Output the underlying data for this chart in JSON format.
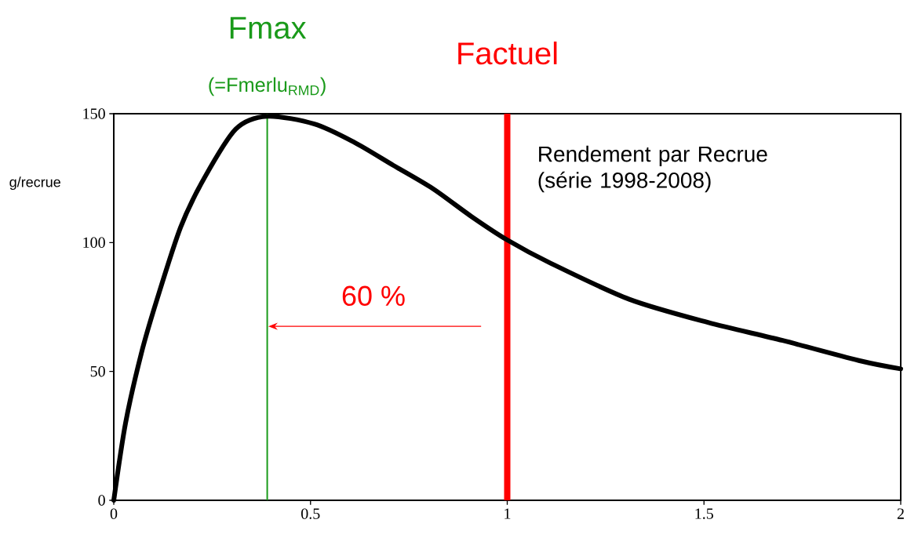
{
  "chart_data": {
    "type": "line",
    "ylabel": "g/recrue",
    "x": [
      0,
      0.03,
      0.07,
      0.11,
      0.17,
      0.23,
      0.31,
      0.39,
      0.51,
      0.61,
      0.71,
      0.81,
      0.91,
      1.0,
      1.11,
      1.31,
      1.51,
      1.7,
      1.9,
      2.0
    ],
    "series": [
      {
        "name": "Rendement par Recrue (série 1998-2008)",
        "color": "#000000",
        "values": [
          0,
          30,
          57,
          78,
          106,
          125,
          144,
          149,
          146,
          139,
          130,
          121,
          110,
          101,
          92,
          78,
          69,
          62,
          54,
          51
        ]
      }
    ],
    "xlim": [
      0,
      2
    ],
    "ylim": [
      0,
      150
    ],
    "xticks": [
      0,
      0.5,
      1,
      1.5,
      2
    ],
    "yticks": [
      0,
      50,
      100,
      150
    ],
    "ref_lines": [
      {
        "axis": "x",
        "value": 0.39,
        "label": "Fmax",
        "color": "#1a9a1a"
      },
      {
        "axis": "x",
        "value": 1.0,
        "label": "Factuel",
        "color": "#ff0000"
      }
    ],
    "annotations": [
      "(=Fmerlu$_{RMD}$)",
      "60 %"
    ],
    "grid": false,
    "marker": "none",
    "line_style": "solid"
  }
}
